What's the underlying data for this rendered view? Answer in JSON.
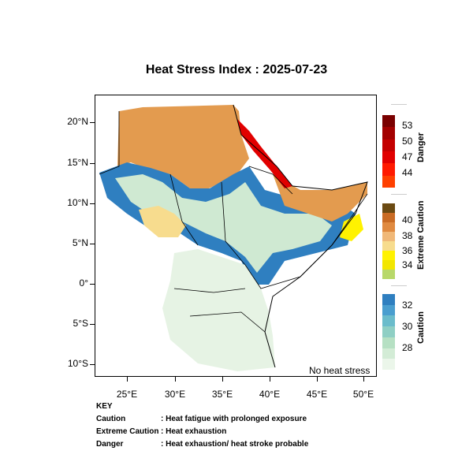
{
  "title": "Heat Stress Index : 2025-07-23",
  "map": {
    "lat_labels": [
      "20°N",
      "15°N",
      "10°N",
      "5°N",
      "0°",
      "5°S",
      "10°S"
    ],
    "lon_labels": [
      "25°E",
      "30°E",
      "35°E",
      "40°E",
      "45°E",
      "50°E"
    ],
    "extent": {
      "lon": [
        22,
        51.5
      ],
      "lat": [
        -11.7,
        23.5
      ]
    },
    "no_stress_label": "No heat stress"
  },
  "legend": {
    "danger": {
      "title": "Danger",
      "labels": [
        "53",
        "50",
        "47",
        "44"
      ],
      "colors": [
        "#7a0000",
        "#a30000",
        "#c40000",
        "#e10000",
        "#ff1a00",
        "#ff4000"
      ]
    },
    "extreme": {
      "title": "Extreme Caution",
      "labels": [
        "40",
        "38",
        "36",
        "34"
      ],
      "colors": [
        "#6b4a12",
        "#c96b24",
        "#e08a40",
        "#f0b878",
        "#f7dc8e",
        "#fff200",
        "#f2e600",
        "#b8d86a"
      ]
    },
    "caution": {
      "title": "Caution",
      "labels": [
        "32",
        "30",
        "28"
      ],
      "colors": [
        "#2f7fc0",
        "#4a9ecf",
        "#6bbccb",
        "#8fcfc4",
        "#b6e0c3",
        "#d3ecd6",
        "#ebf6ea"
      ]
    }
  },
  "key": {
    "heading": "KEY",
    "rows": [
      {
        "term": "Caution",
        "desc": ": Heat fatigue with prolonged exposure"
      },
      {
        "term": "Extreme Caution",
        "desc": ": Heat exhaustion"
      },
      {
        "term": "Danger",
        "desc": ": Heat exhaustion/ heat stroke probable"
      }
    ]
  }
}
